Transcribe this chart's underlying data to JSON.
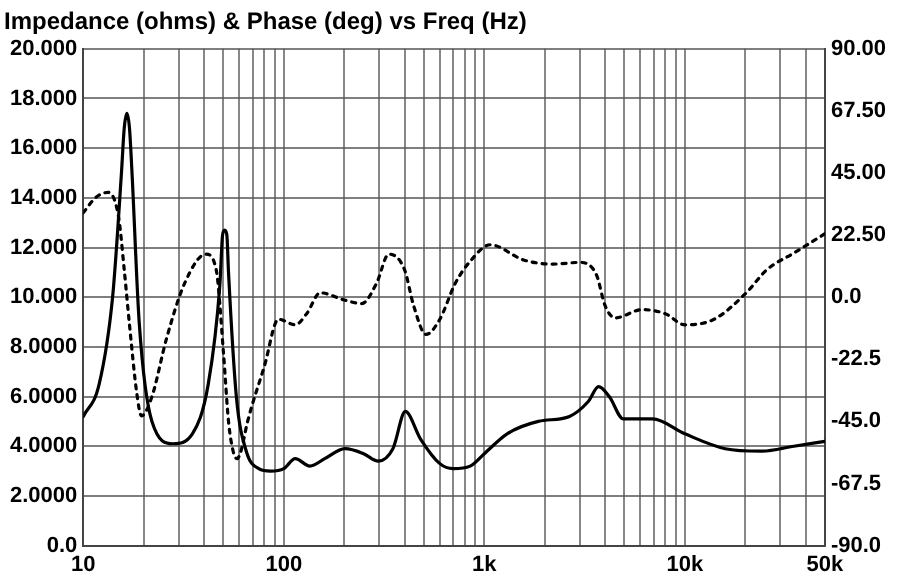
{
  "chart_data": {
    "type": "line",
    "title": "Impedance (ohms) & Phase (deg) vs Freq (Hz)",
    "log": "x",
    "grid": true,
    "legend": false,
    "marker": "none",
    "xlim": [
      10,
      50000
    ],
    "xticks": [
      10,
      {
        "value": 20,
        "label": null
      },
      {
        "value": 30,
        "label": null
      },
      {
        "value": 40,
        "label": null
      },
      {
        "value": 50,
        "label": null
      },
      {
        "value": 60,
        "label": null
      },
      {
        "value": 70,
        "label": null
      },
      {
        "value": 80,
        "label": null
      },
      {
        "value": 90,
        "label": null
      },
      100,
      {
        "value": 200,
        "label": null
      },
      {
        "value": 300,
        "label": null
      },
      {
        "value": 400,
        "label": null
      },
      {
        "value": 500,
        "label": null
      },
      {
        "value": 600,
        "label": null
      },
      {
        "value": 700,
        "label": null
      },
      {
        "value": 800,
        "label": null
      },
      {
        "value": 900,
        "label": null
      },
      {
        "value": 1000,
        "label": "1k"
      },
      {
        "value": 2000,
        "label": null
      },
      {
        "value": 3000,
        "label": null
      },
      {
        "value": 4000,
        "label": null
      },
      {
        "value": 5000,
        "label": null
      },
      {
        "value": 6000,
        "label": null
      },
      {
        "value": 7000,
        "label": null
      },
      {
        "value": 8000,
        "label": null
      },
      {
        "value": 9000,
        "label": null
      },
      {
        "value": 10000,
        "label": "10k"
      },
      {
        "value": 20000,
        "label": null
      },
      {
        "value": 30000,
        "label": null
      },
      {
        "value": 40000,
        "label": null
      },
      {
        "value": 50000,
        "label": "50k"
      }
    ],
    "ylim": [
      0,
      20
    ],
    "yticks": [
      {
        "value": 0,
        "label": "0.0"
      },
      {
        "value": 2,
        "label": "2.0000"
      },
      {
        "value": 4,
        "label": "4.0000"
      },
      {
        "value": 6,
        "label": "6.0000"
      },
      {
        "value": 8,
        "label": "8.0000"
      },
      {
        "value": 10,
        "label": "10.000"
      },
      {
        "value": 12,
        "label": "12.000"
      },
      {
        "value": 14,
        "label": "14.000"
      },
      {
        "value": 16,
        "label": "16.000"
      },
      {
        "value": 18,
        "label": "18.000"
      },
      {
        "value": 20,
        "label": "20.000"
      }
    ],
    "y2lim": [
      -90,
      90
    ],
    "y2ticks": [
      {
        "value": -90,
        "label": "-90.0"
      },
      {
        "value": -67.5,
        "label": "-67.5"
      },
      {
        "value": -45,
        "label": "-45.0"
      },
      {
        "value": -22.5,
        "label": "-22.5"
      },
      {
        "value": 0,
        "label": "0.0"
      },
      {
        "value": 22.5,
        "label": "22.50"
      },
      {
        "value": 45,
        "label": "45.00"
      },
      {
        "value": 67.5,
        "label": "67.50"
      },
      {
        "value": 90,
        "label": "90.00"
      }
    ],
    "series": [
      {
        "color": "#000000",
        "line_style": "solid",
        "x": [
          10,
          12,
          14,
          15.5,
          16,
          16.5,
          17,
          17.5,
          19,
          22,
          28,
          35,
          42,
          48,
          49.5,
          50.7,
          52,
          53,
          58,
          65,
          75,
          86,
          100,
          114,
          135,
          160,
          202,
          250,
          296,
          350,
          404,
          480,
          600,
          700,
          850,
          1000,
          1300,
          1860,
          2660,
          3300,
          3715,
          4200,
          4940,
          6910,
          10000,
          15900,
          23900,
          35000,
          50000
        ],
        "values": [
          5.2,
          6.5,
          10,
          15,
          16.8,
          17.4,
          16.8,
          15,
          9,
          5,
          4.1,
          4.5,
          6.5,
          10.5,
          12.5,
          12.7,
          12.5,
          11,
          6,
          3.8,
          3.1,
          3.0,
          3.1,
          3.5,
          3.2,
          3.5,
          3.9,
          3.7,
          3.4,
          3.9,
          5.4,
          4.3,
          3.3,
          3.1,
          3.2,
          3.7,
          4.5,
          5.0,
          5.2,
          5.8,
          6.4,
          6,
          5.1,
          5.1,
          4.5,
          3.9,
          3.8,
          4.0,
          4.2
        ]
      },
      {
        "color": "#000000",
        "line_style": "dotted",
        "axis": "y2",
        "x": [
          10,
          11.5,
          13.3,
          15,
          16,
          17,
          18.5,
          19.5,
          22,
          26,
          32,
          40.9,
          46,
          50,
          53,
          56,
          58.5,
          61,
          66,
          80,
          94,
          114,
          130,
          152,
          200,
          245,
          290,
          334,
          400,
          444,
          512,
          600,
          716,
          850,
          1070,
          1570,
          2200,
          3000,
          3630,
          4000,
          4500,
          6130,
          8000,
          10000,
          14000,
          20200,
          25700,
          35000,
          50000
        ],
        "values": [
          30.6,
          36,
          38,
          29,
          10,
          -10,
          -35,
          -43,
          -36,
          -15,
          5,
          15.6,
          10,
          -20,
          -45,
          -56,
          -58.5,
          -56,
          -45,
          -25,
          -8,
          -10,
          -6,
          1.6,
          -1,
          -2.3,
          5,
          15.6,
          10,
          -3,
          -13.5,
          -8,
          5,
          13,
          19,
          13.5,
          12,
          12.6,
          8,
          -3,
          -7.5,
          -4.5,
          -6,
          -10,
          -8,
          1.5,
          10,
          16,
          23
        ]
      }
    ]
  }
}
